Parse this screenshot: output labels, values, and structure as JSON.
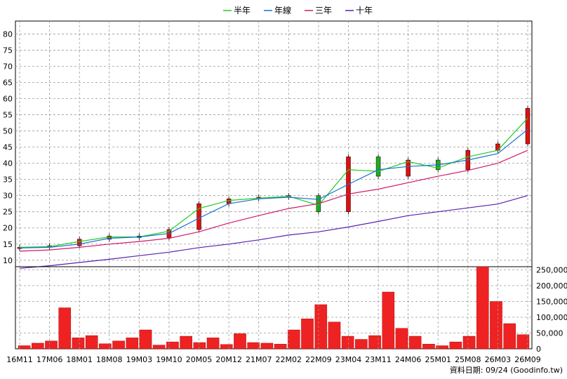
{
  "chart_data": [
    {
      "type": "candlestick+line",
      "legend": [
        "半年",
        "年線",
        "三年",
        "十年"
      ],
      "legend_placement": "top-center",
      "series_colors": {
        "半年": "#22cc22",
        "年線": "#1a6fd6",
        "三年": "#d01a6a",
        "十年": "#5a20b0",
        "up": "#dd1111",
        "down": "#22aa22"
      },
      "x_tick_labels": [
        "16M11",
        "17M06",
        "18M01",
        "18M08",
        "19M03",
        "19M10",
        "20M05",
        "20M12",
        "21M07",
        "22M02",
        "22M09",
        "23M04",
        "23M11",
        "24M06",
        "25M01",
        "25M08",
        "26M03",
        "26M09"
      ],
      "x": [
        "16M11",
        "17M06",
        "18M01",
        "18M08",
        "19M03",
        "19M10",
        "20M05",
        "20M12",
        "21M07",
        "22M02",
        "22M09",
        "23M04",
        "23M11",
        "24M06",
        "25M01",
        "25M08",
        "26M03",
        "26M09"
      ],
      "ylim": [
        8,
        84
      ],
      "y_ticks": [
        10,
        15,
        20,
        25,
        30,
        35,
        40,
        45,
        50,
        55,
        60,
        65,
        70,
        75,
        80
      ],
      "grid": true,
      "close": [
        14.0,
        14.5,
        16.5,
        17.5,
        17.0,
        19.5,
        27.5,
        29.0,
        29.5,
        30.0,
        25.0,
        42.0,
        36.0,
        41.0,
        38.0,
        44.0,
        46.0,
        57.0
      ],
      "series": [
        {
          "name": "半年",
          "values": [
            14.0,
            14.2,
            15.8,
            17.2,
            17.2,
            19.0,
            26.0,
            28.5,
            29.2,
            29.8,
            27.0,
            38.0,
            37.5,
            40.5,
            38.5,
            42.0,
            44.0,
            54.0
          ]
        },
        {
          "name": "年線",
          "values": [
            13.8,
            14.0,
            15.0,
            16.8,
            17.2,
            18.3,
            23.0,
            27.5,
            29.0,
            29.5,
            28.8,
            33.5,
            38.0,
            39.0,
            39.5,
            41.0,
            43.0,
            50.5
          ]
        },
        {
          "name": "三年",
          "values": [
            12.8,
            13.2,
            14.0,
            15.0,
            15.8,
            16.8,
            18.8,
            21.5,
            23.8,
            26.0,
            27.5,
            30.5,
            32.0,
            34.0,
            36.0,
            37.8,
            40.0,
            44.0
          ]
        },
        {
          "name": "十年",
          "values": [
            7.5,
            8.3,
            9.3,
            10.3,
            11.4,
            12.5,
            13.9,
            15.0,
            16.3,
            17.8,
            18.8,
            20.3,
            22.0,
            23.8,
            25.0,
            26.2,
            27.4,
            30.0
          ]
        }
      ]
    },
    {
      "type": "bar",
      "name": "volume",
      "x_tick_labels": [
        "16M11",
        "17M06",
        "18M01",
        "18M08",
        "19M03",
        "19M10",
        "20M05",
        "20M12",
        "21M07",
        "22M02",
        "22M09",
        "23M04",
        "23M11",
        "24M06",
        "25M01",
        "25M08",
        "26M03",
        "26M09"
      ],
      "ylim": [
        0,
        260000
      ],
      "y_ticks": [
        "250,000",
        "200,000",
        "150,000",
        "100,000",
        "50,000",
        "0"
      ],
      "color": "#ee2222",
      "values": [
        10000,
        18000,
        25000,
        130000,
        35000,
        42000,
        16000,
        25000,
        35000,
        60000,
        12000,
        22000,
        40000,
        20000,
        35000,
        14000,
        48000,
        20000,
        18000,
        15000,
        60000,
        95000,
        140000,
        85000,
        40000,
        30000,
        42000,
        180000,
        65000,
        40000,
        15000,
        10000,
        22000,
        40000,
        260000,
        150000,
        80000,
        45000
      ]
    }
  ],
  "source": "資料日期: 09/24  (Goodinfo.tw)"
}
